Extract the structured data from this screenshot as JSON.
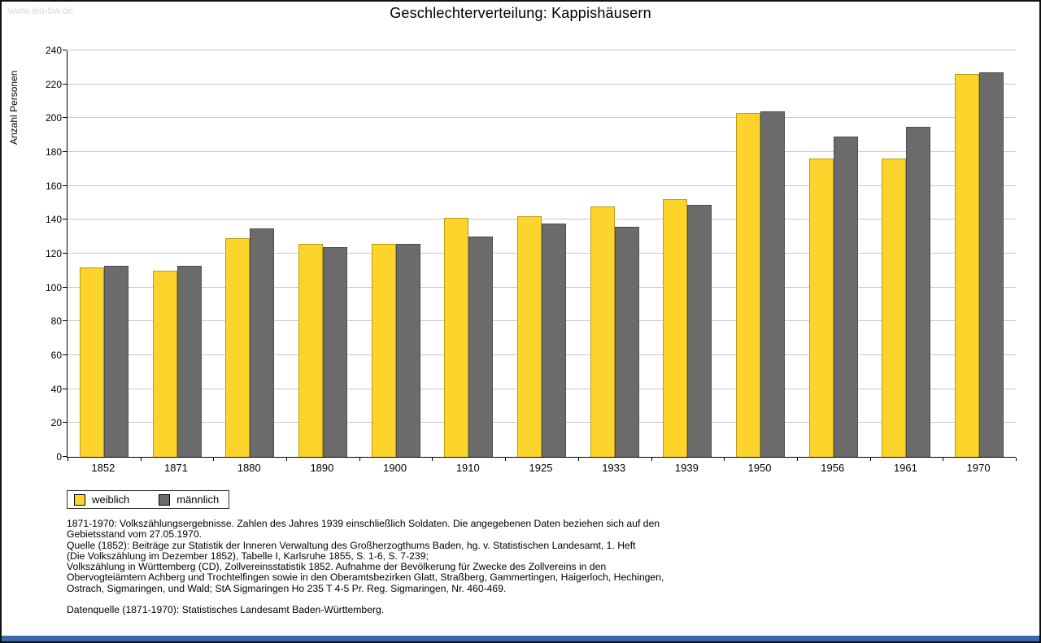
{
  "watermark": {
    "text": "www.leo-bw.de"
  },
  "chart_data": {
    "type": "bar",
    "title": "Geschlechterverteilung: Kappishäusern",
    "categories": [
      "1852",
      "1871",
      "1880",
      "1890",
      "1900",
      "1910",
      "1925",
      "1933",
      "1939",
      "1950",
      "1956",
      "1961",
      "1970"
    ],
    "series": [
      {
        "name": "weiblich",
        "color": "#fcd42c",
        "values": [
          112,
          110,
          129,
          126,
          126,
          141,
          142,
          148,
          152,
          203,
          176,
          176,
          226
        ]
      },
      {
        "name": "männlich",
        "color": "#6b6b6b",
        "values": [
          113,
          113,
          135,
          124,
          126,
          130,
          138,
          136,
          149,
          204,
          189,
          195,
          227
        ]
      }
    ],
    "xlabel": "",
    "ylabel": "Anzahl Personen",
    "ylim": [
      0,
      240
    ],
    "y_ticks": [
      0,
      20,
      40,
      60,
      80,
      100,
      120,
      140,
      160,
      180,
      200,
      220,
      240
    ],
    "grid": true,
    "legend_position": "bottom-left"
  },
  "footnote": {
    "lines": [
      "1871-1970: Volkszählungsergebnisse. Zahlen des Jahres 1939 einschließlich Soldaten. Die angegebenen Daten beziehen sich auf den",
      "Gebietsstand vom 27.05.1970.",
      "Quelle (1852): Beiträge zur Statistik der Inneren Verwaltung des Großherzogthums Baden, hg. v. Statistischen Landesamt, 1. Heft",
      "(Die Volkszählung im Dezember 1852), Tabelle I, Karlsruhe 1855, S. 1-6, S. 7-239;",
      "Volkszählung in Württemberg (CD), Zollvereinsstatistik 1852. Aufnahme der Bevölkerung für Zwecke des Zollvereins in den",
      "Obervogteiämtern Achberg und Trochtelfingen sowie in den Oberamtsbezirken Glatt, Straßberg, Gammertingen, Haigerloch, Hechingen,",
      "Ostrach, Sigmaringen, und Wald; StA Sigmaringen Ho 235 T 4-5 Pr. Reg. Sigmaringen, Nr. 460-469.",
      "",
      "Datenquelle (1871-1970): Statistisches Landesamt Baden-Württemberg."
    ]
  },
  "colors": {
    "grid": "#c9c9c9",
    "axis": "#000000",
    "watermark": "#d9d9d9",
    "bottom_bar": "#3a68a8"
  }
}
